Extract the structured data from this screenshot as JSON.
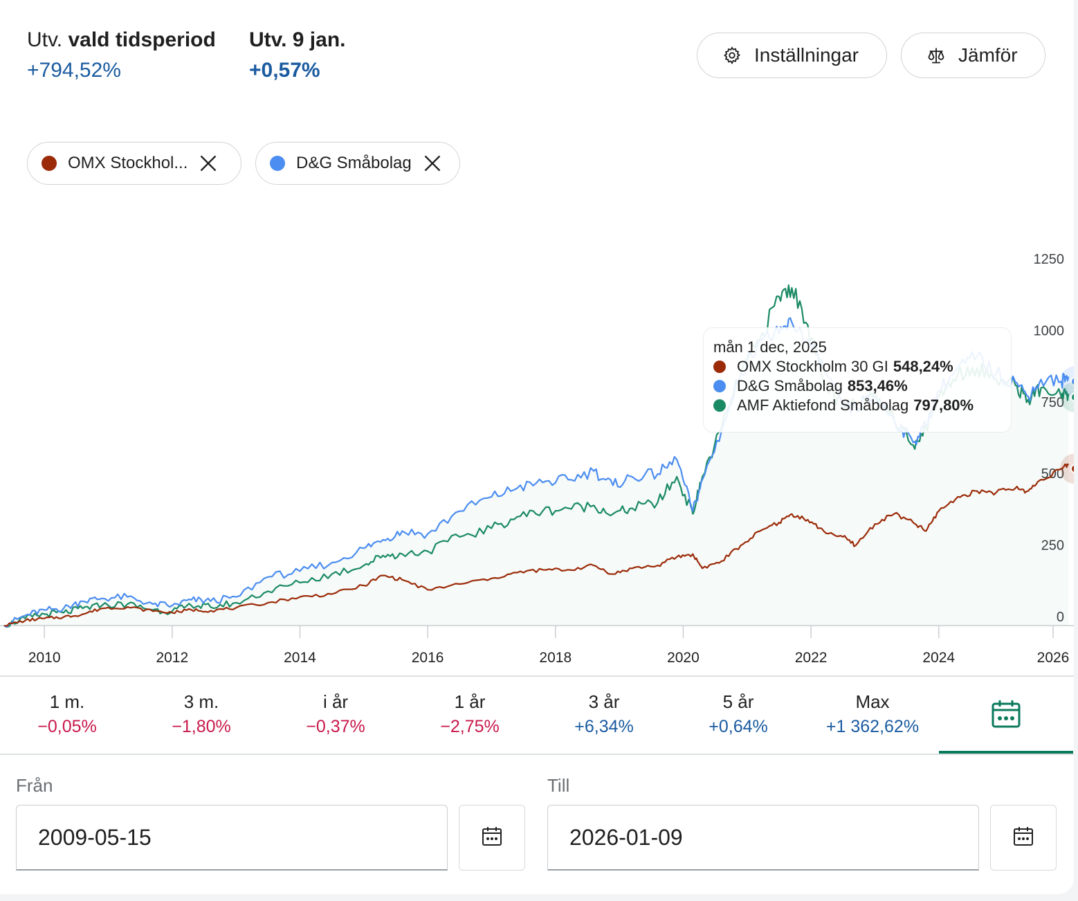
{
  "summary": {
    "period_prefix": "Utv.",
    "period_label": "vald tidsperiod",
    "period_value": "+794,52%",
    "day_label": "Utv. 9 jan.",
    "day_value": "+0,57%"
  },
  "toolbar": {
    "settings_label": "Inställningar",
    "compare_label": "Jämför"
  },
  "chips": [
    {
      "label": "OMX Stockhol...",
      "color": "#9b2a08"
    },
    {
      "label": "D&G Småbolag",
      "color": "#4b8df0"
    }
  ],
  "tooltip": {
    "date": "mån 1 dec, 2025",
    "rows": [
      {
        "name": "OMX Stockholm 30 GI",
        "value": "548,24%",
        "color": "#9b2a08"
      },
      {
        "name": "D&G Småbolag",
        "value": "853,46%",
        "color": "#4b8df0"
      },
      {
        "name": "AMF Aktiefond Småbolag",
        "value": "797,80%",
        "color": "#1a8a64"
      }
    ]
  },
  "chart_data": {
    "type": "line",
    "xlabel": "",
    "ylabel": "",
    "x_ticks": [
      "2010",
      "2012",
      "2014",
      "2016",
      "2018",
      "2020",
      "2022",
      "2024",
      "2026"
    ],
    "y_ticks": [
      0,
      250,
      500,
      750,
      1000,
      1250
    ],
    "ylim": [
      0,
      1300
    ],
    "xlim": [
      2009.37,
      2026.05
    ],
    "grid": false,
    "y_axis_side": "right",
    "x": [
      2009.37,
      2009.7,
      2010.0,
      2010.3,
      2010.6,
      2010.9,
      2011.3,
      2011.7,
      2012.0,
      2012.3,
      2012.6,
      2013.0,
      2013.5,
      2014.0,
      2014.5,
      2015.0,
      2015.3,
      2015.6,
      2016.0,
      2016.5,
      2017.0,
      2017.4,
      2017.8,
      2018.2,
      2018.6,
      2018.9,
      2019.2,
      2019.6,
      2019.9,
      2020.15,
      2020.3,
      2020.6,
      2020.9,
      2021.2,
      2021.5,
      2021.7,
      2021.95,
      2022.2,
      2022.5,
      2022.7,
      2023.0,
      2023.3,
      2023.6,
      2023.8,
      2024.0,
      2024.3,
      2024.6,
      2024.9,
      2025.2,
      2025.4,
      2025.6,
      2025.92,
      2026.03
    ],
    "series": [
      {
        "name": "OMX Stockholm 30 GI",
        "color": "#9b2a08",
        "values": [
          0,
          18,
          25,
          30,
          40,
          60,
          65,
          50,
          45,
          55,
          52,
          62,
          80,
          100,
          110,
          140,
          175,
          160,
          125,
          145,
          165,
          185,
          195,
          195,
          210,
          180,
          200,
          210,
          240,
          250,
          200,
          225,
          280,
          330,
          360,
          390,
          370,
          330,
          310,
          280,
          355,
          390,
          360,
          330,
          400,
          450,
          470,
          465,
          480,
          470,
          510,
          548,
          560
        ]
      },
      {
        "name": "D&G Småbolag",
        "color": "#4b8df0",
        "values": [
          0,
          35,
          55,
          60,
          85,
          95,
          100,
          75,
          70,
          90,
          85,
          100,
          170,
          190,
          220,
          270,
          300,
          330,
          320,
          400,
          450,
          480,
          500,
          510,
          540,
          490,
          520,
          530,
          580,
          400,
          510,
          680,
          880,
          1000,
          1020,
          1060,
          1000,
          900,
          760,
          760,
          800,
          720,
          640,
          700,
          820,
          900,
          940,
          880,
          850,
          800,
          860,
          853,
          870
        ]
      },
      {
        "name": "AMF Aktiefond Småbolag",
        "color": "#1a8a64",
        "values": [
          0,
          25,
          40,
          45,
          60,
          70,
          75,
          55,
          50,
          70,
          65,
          80,
          120,
          150,
          180,
          210,
          245,
          250,
          260,
          310,
          340,
          380,
          400,
          410,
          420,
          390,
          410,
          430,
          520,
          390,
          520,
          690,
          880,
          1000,
          1150,
          1180,
          1050,
          850,
          760,
          770,
          820,
          720,
          630,
          690,
          800,
          880,
          900,
          860,
          840,
          790,
          830,
          798,
          810
        ]
      }
    ]
  },
  "periods": [
    {
      "label": "1 m.",
      "value": "−0,05%",
      "sign": "neg"
    },
    {
      "label": "3 m.",
      "value": "−1,80%",
      "sign": "neg"
    },
    {
      "label": "i år",
      "value": "−0,37%",
      "sign": "neg"
    },
    {
      "label": "1 år",
      "value": "−2,75%",
      "sign": "neg"
    },
    {
      "label": "3 år",
      "value": "+6,34%",
      "sign": "pos"
    },
    {
      "label": "5 år",
      "value": "+0,64%",
      "sign": "pos"
    },
    {
      "label": "Max",
      "value": "+1 362,62%",
      "sign": "pos"
    }
  ],
  "date_range": {
    "from_label": "Från",
    "from_value": "2009-05-15",
    "to_label": "Till",
    "to_value": "2026-01-09"
  },
  "colors": {
    "positive": "#1a5ba0",
    "negative": "#c8194a",
    "accent": "#0a7a5c"
  }
}
